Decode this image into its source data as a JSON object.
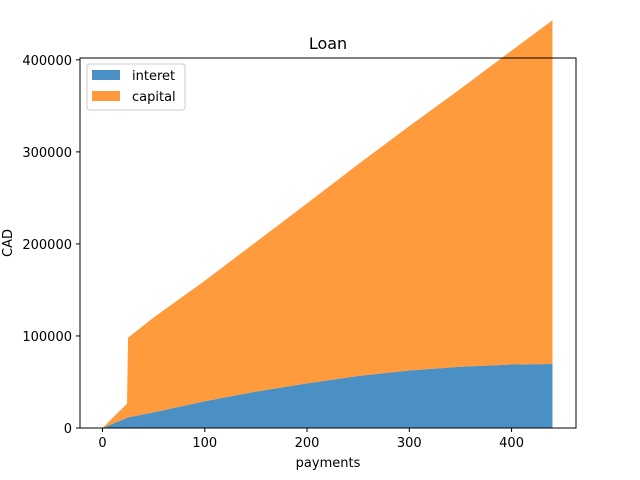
{
  "chart_data": {
    "type": "area",
    "stacked": true,
    "title": "Loan",
    "xlabel": "payments",
    "ylabel": "CAD",
    "xlim": [
      -22,
      463
    ],
    "ylim": [
      0,
      402000
    ],
    "xticks": [
      0,
      100,
      200,
      300,
      400
    ],
    "yticks": [
      0,
      100000,
      200000,
      300000,
      400000
    ],
    "grid": false,
    "legend_position": "upper-left",
    "x": [
      0,
      24,
      25,
      50,
      100,
      150,
      200,
      250,
      300,
      350,
      400,
      440
    ],
    "series": [
      {
        "name": "interet",
        "color": "#4a90c4",
        "values": [
          0,
          11000,
          11500,
          17000,
          29000,
          39500,
          48500,
          56500,
          62500,
          66500,
          69000,
          69500
        ]
      },
      {
        "name": "capital",
        "color": "#ff9a3d",
        "values": [
          0,
          15500,
          86500,
          103000,
          131000,
          162500,
          195500,
          230000,
          265500,
          302000,
          341000,
          373500
        ]
      }
    ]
  }
}
